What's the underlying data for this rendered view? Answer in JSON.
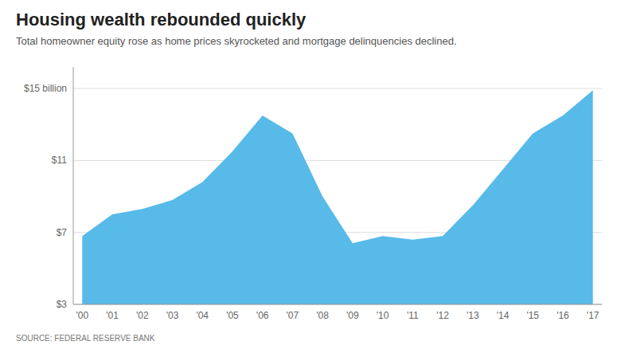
{
  "chart_data": {
    "type": "area",
    "title": "Housing wealth rebounded quickly",
    "subtitle": "Total homeowner equity rose as home prices skyrocketed and mortgage delinquencies declined.",
    "source": "SOURCE: FEDERAL RESERVE BANK",
    "categories": [
      "'00",
      "'01",
      "'02",
      "'03",
      "'04",
      "'05",
      "'06",
      "'07",
      "'08",
      "'09",
      "'10",
      "'11",
      "'12",
      "'13",
      "'14",
      "'15",
      "'16",
      "'17"
    ],
    "values": [
      6.8,
      8.0,
      8.3,
      8.8,
      9.8,
      11.5,
      13.5,
      12.5,
      9.0,
      6.4,
      6.8,
      6.6,
      6.8,
      8.5,
      10.5,
      12.5,
      13.5,
      14.9
    ],
    "color": "#58bae8",
    "ylim": [
      3,
      16.2
    ],
    "yticks": [
      {
        "value": 3,
        "label": "$3"
      },
      {
        "value": 7,
        "label": "$7"
      },
      {
        "value": 11,
        "label": "$11"
      },
      {
        "value": 15,
        "label": "$15 billion"
      }
    ],
    "grid": true
  }
}
